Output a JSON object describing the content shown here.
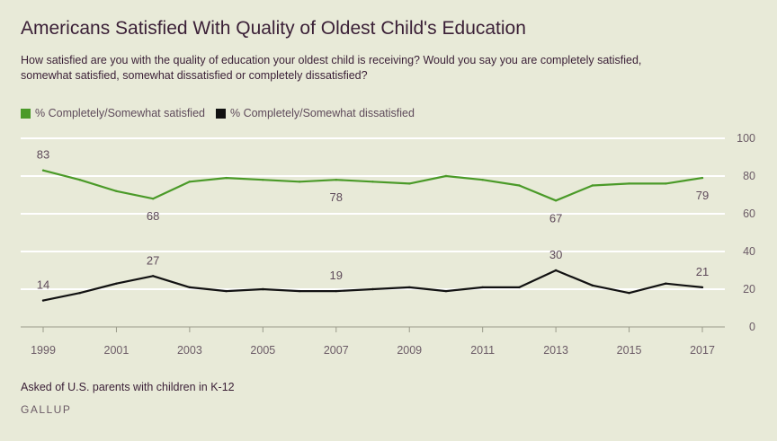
{
  "header": {
    "title": "Americans Satisfied With Quality of Oldest Child's Education",
    "subtitle": "How satisfied are you with the quality of education your oldest child is receiving? Would you say you are completely satisfied, somewhat satisfied, somewhat dissatisfied or completely dissatisfied?"
  },
  "footer": {
    "note": "Asked of U.S. parents with children in K-12",
    "brand": "GALLUP"
  },
  "colors": {
    "background": "#e8ead8",
    "satisfied": "#4a9a28",
    "dissatisfied": "#111111",
    "text": "#3a1f36",
    "axis_text": "#6b5b66"
  },
  "chart_data": {
    "type": "line",
    "title": "Americans Satisfied With Quality of Oldest Child's Education",
    "xlabel": "",
    "ylabel": "",
    "x": [
      1999,
      2000,
      2001,
      2002,
      2003,
      2004,
      2005,
      2006,
      2007,
      2008,
      2009,
      2010,
      2011,
      2012,
      2013,
      2014,
      2015,
      2016,
      2017
    ],
    "x_tick_labels": [
      "1999",
      "2001",
      "2003",
      "2005",
      "2007",
      "2009",
      "2011",
      "2013",
      "2015",
      "2017"
    ],
    "y_tick_labels": [
      "0",
      "20",
      "40",
      "60",
      "80",
      "100"
    ],
    "ylim": [
      0,
      100
    ],
    "grid": true,
    "legend_position": "top-left",
    "series": [
      {
        "name": "% Completely/Somewhat satisfied",
        "color": "#4a9a28",
        "values": [
          83,
          78,
          72,
          68,
          77,
          79,
          78,
          77,
          78,
          77,
          76,
          80,
          78,
          75,
          67,
          75,
          76,
          76,
          79
        ],
        "labels": [
          {
            "year": 1999,
            "text": "83",
            "pos": "above"
          },
          {
            "year": 2002,
            "text": "68",
            "pos": "below"
          },
          {
            "year": 2007,
            "text": "78",
            "pos": "below"
          },
          {
            "year": 2013,
            "text": "67",
            "pos": "below"
          },
          {
            "year": 2017,
            "text": "79",
            "pos": "below"
          }
        ]
      },
      {
        "name": "% Completely/Somewhat dissatisfied",
        "color": "#111111",
        "values": [
          14,
          18,
          23,
          27,
          21,
          19,
          20,
          19,
          19,
          20,
          21,
          19,
          21,
          21,
          30,
          22,
          18,
          23,
          21
        ],
        "labels": [
          {
            "year": 1999,
            "text": "14",
            "pos": "above"
          },
          {
            "year": 2002,
            "text": "27",
            "pos": "above"
          },
          {
            "year": 2007,
            "text": "19",
            "pos": "above"
          },
          {
            "year": 2013,
            "text": "30",
            "pos": "above"
          },
          {
            "year": 2017,
            "text": "21",
            "pos": "above"
          }
        ]
      }
    ]
  }
}
